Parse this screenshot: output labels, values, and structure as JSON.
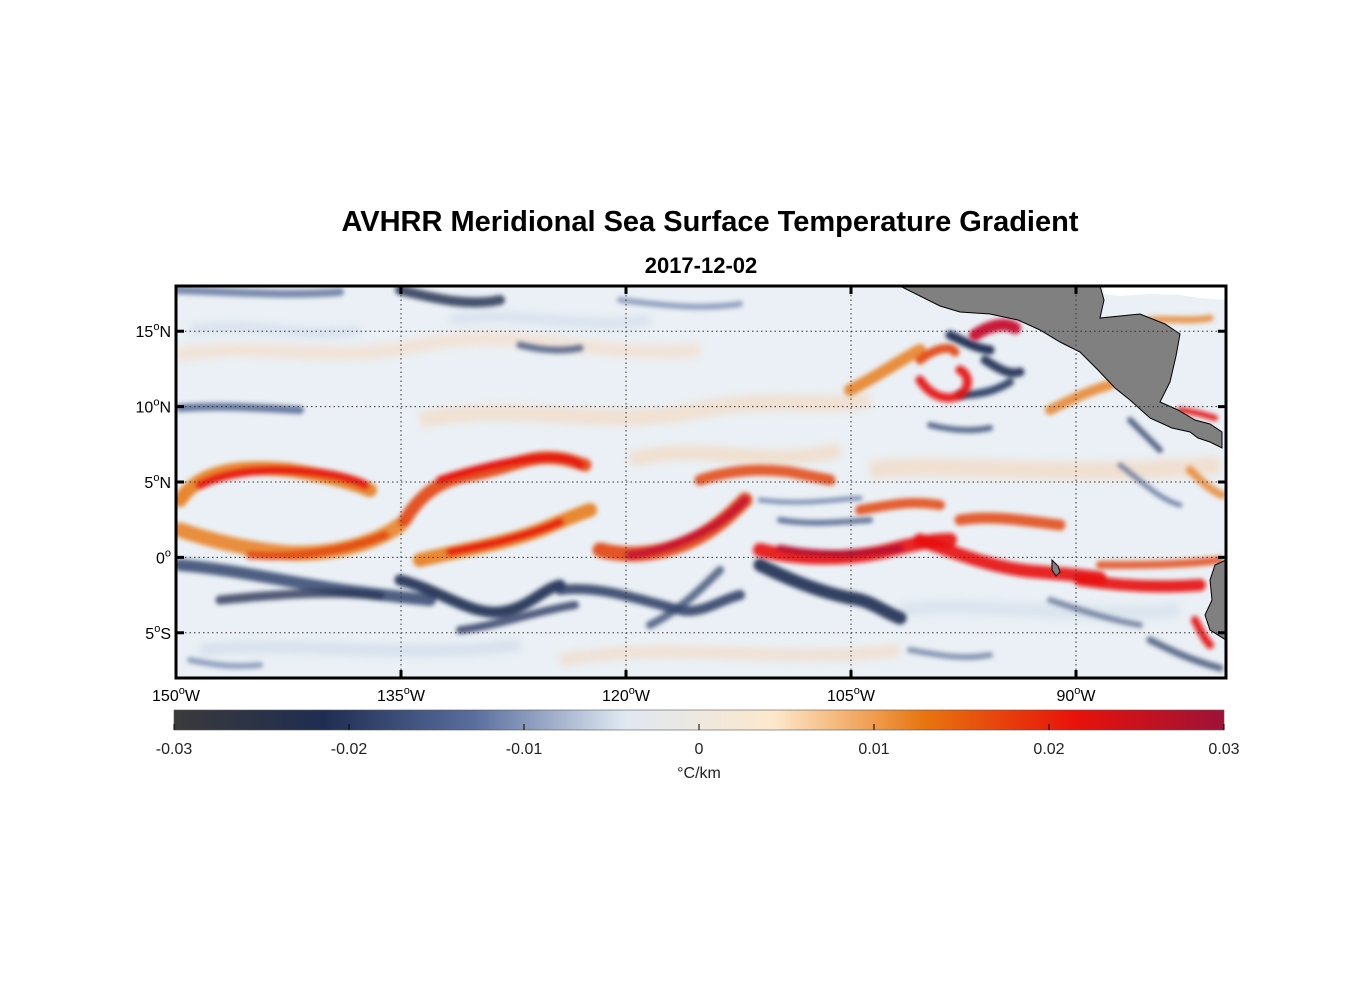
{
  "title": "AVHRR Meridional Sea Surface Temperature Gradient",
  "subtitle": "2017-12-02",
  "map": {
    "lon_range": [
      -150,
      -80
    ],
    "lat_range": [
      -8,
      18
    ],
    "lon_ticks": [
      {
        "value": -150,
        "num": "150",
        "hemi": "W"
      },
      {
        "value": -135,
        "num": "135",
        "hemi": "W"
      },
      {
        "value": -120,
        "num": "120",
        "hemi": "W"
      },
      {
        "value": -105,
        "num": "105",
        "hemi": "W"
      },
      {
        "value": -90,
        "num": "90",
        "hemi": "W"
      }
    ],
    "lat_ticks": [
      {
        "value": 15,
        "num": "15",
        "hemi": "N"
      },
      {
        "value": 10,
        "num": "10",
        "hemi": "N"
      },
      {
        "value": 5,
        "num": "5",
        "hemi": "N"
      },
      {
        "value": 0,
        "num": "0",
        "hemi": ""
      },
      {
        "value": -5,
        "num": "5",
        "hemi": "S"
      }
    ],
    "degree_symbol": "o",
    "land_color": "#808080",
    "grid": "dotted"
  },
  "colorbar": {
    "min": -0.03,
    "max": 0.03,
    "tick_labels": [
      "-0.03",
      "-0.02",
      "-0.01",
      "0",
      "0.01",
      "0.02",
      "0.03"
    ],
    "tick_values": [
      -0.03,
      -0.02,
      -0.01,
      0,
      0.01,
      0.02,
      0.03
    ],
    "unit_label": "°C/km",
    "stops": [
      "#3a3a3a",
      "#1f2d52",
      "#5a6e9e",
      "#dfe8f2",
      "#fde8cc",
      "#e8750f",
      "#e8120a",
      "#9e1239"
    ]
  }
}
